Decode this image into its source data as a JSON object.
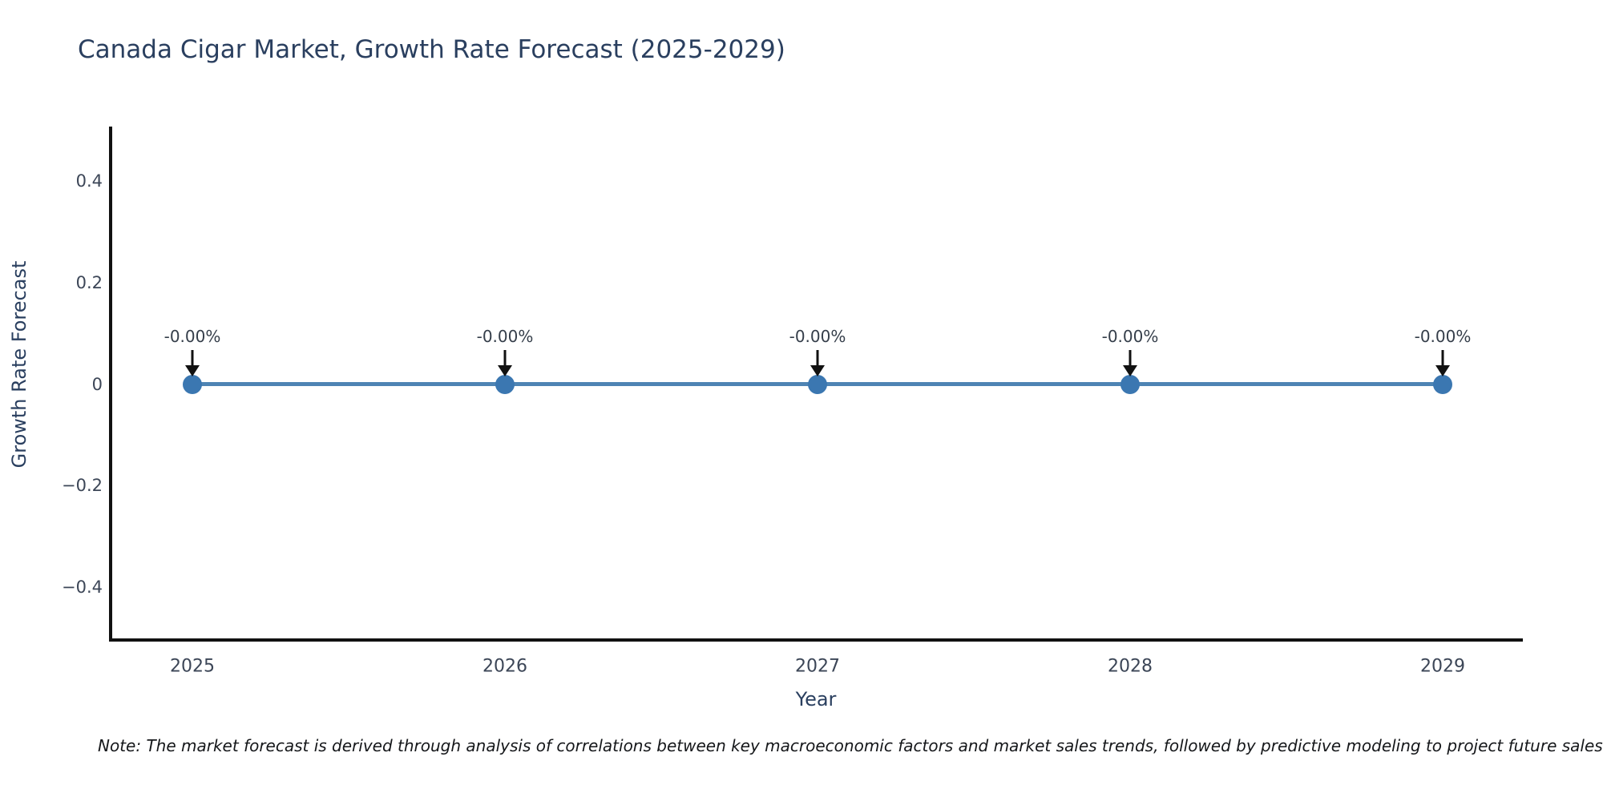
{
  "note": "Note: The market forecast is derived through analysis of correlations between key macroeconomic factors and market sales trends, followed by predictive modeling to project future sales",
  "chart_data": {
    "type": "line",
    "title": "Canada Cigar Market, Growth Rate Forecast (2025-2029)",
    "xlabel": "Year",
    "ylabel": "Growth Rate Forecast",
    "categories": [
      "2025",
      "2026",
      "2027",
      "2028",
      "2029"
    ],
    "series": [
      {
        "name": "Growth Rate Forecast",
        "values": [
          0,
          0,
          0,
          0,
          0
        ],
        "point_labels": [
          "-0.00%",
          "-0.00%",
          "-0.00%",
          "-0.00%",
          "-0.00%"
        ]
      }
    ],
    "ylim": [
      -0.5,
      0.5
    ],
    "yticks": [
      {
        "value": 0.4,
        "label": "0.4"
      },
      {
        "value": 0.2,
        "label": "0.2"
      },
      {
        "value": 0,
        "label": "0"
      },
      {
        "value": -0.2,
        "label": "−0.2"
      },
      {
        "value": -0.4,
        "label": "−0.4"
      }
    ],
    "grid": false,
    "legend": "none",
    "annotations_have_arrows": true,
    "colors": {
      "line": "#4e84b4",
      "marker": "#3b77b1",
      "arrow": "#111111",
      "axis_line": "#111111",
      "title_text": "#2a3f5f",
      "tick_text": "#3c4657",
      "annotation_text": "#353e4a",
      "note_text": "#15171a",
      "background": "#ffffff"
    }
  }
}
